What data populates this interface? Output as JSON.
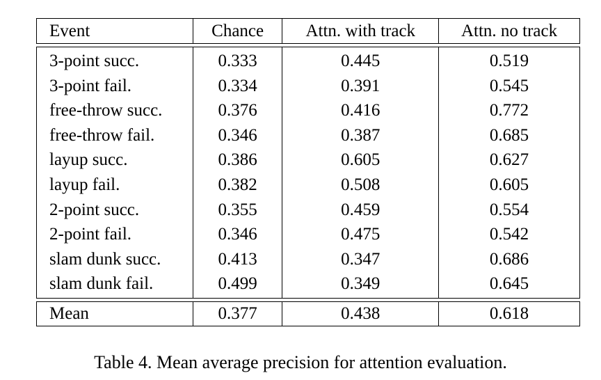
{
  "table": {
    "headers": [
      "Event",
      "Chance",
      "Attn. with track",
      "Attn. no track"
    ],
    "rows": [
      [
        "3-point succ.",
        "0.333",
        "0.445",
        "0.519"
      ],
      [
        "3-point fail.",
        "0.334",
        "0.391",
        "0.545"
      ],
      [
        "free-throw succ.",
        "0.376",
        "0.416",
        "0.772"
      ],
      [
        "free-throw fail.",
        "0.346",
        "0.387",
        "0.685"
      ],
      [
        "layup succ.",
        "0.386",
        "0.605",
        "0.627"
      ],
      [
        "layup fail.",
        "0.382",
        "0.508",
        "0.605"
      ],
      [
        "2-point succ.",
        "0.355",
        "0.459",
        "0.554"
      ],
      [
        "2-point fail.",
        "0.346",
        "0.475",
        "0.542"
      ],
      [
        "slam dunk succ.",
        "0.413",
        "0.347",
        "0.686"
      ],
      [
        "slam dunk fail.",
        "0.499",
        "0.349",
        "0.645"
      ]
    ],
    "mean": [
      "Mean",
      "0.377",
      "0.438",
      "0.618"
    ]
  },
  "caption": "Table 4. Mean average precision for attention evaluation."
}
